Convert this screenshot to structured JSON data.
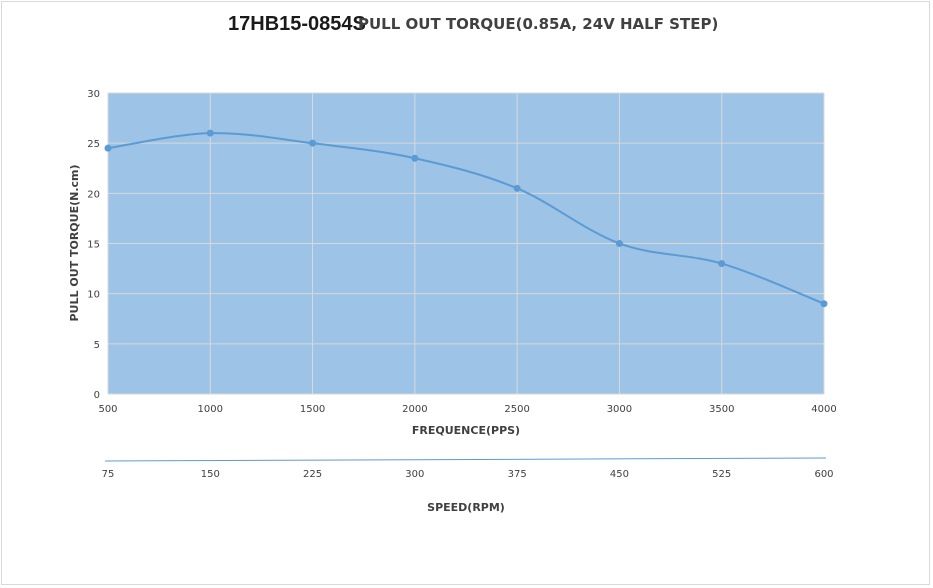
{
  "title": {
    "model": "17HB15-0854S",
    "subtitle": "PULL OUT TORQUE(0.85A, 24V HALF STEP)"
  },
  "colors": {
    "plot_fill": "#9dc3e6",
    "series": "#5b9bd5",
    "grid": "#d9d9d9",
    "text": "#404040"
  },
  "chart_data": {
    "type": "area",
    "title": "PULL OUT TORQUE(0.85A, 24V HALF STEP)",
    "xlabel": "FREQUENCE(PPS)",
    "ylabel": "PULL OUT TORQUE(N.cm)",
    "x": [
      500,
      1000,
      1500,
      2000,
      2500,
      3000,
      3500,
      4000
    ],
    "xticks": [
      "500",
      "1000",
      "1500",
      "2000",
      "2500",
      "3000",
      "3500",
      "4000"
    ],
    "ylim": [
      0,
      30
    ],
    "yticks": [
      "0",
      "5",
      "10",
      "15",
      "20",
      "25",
      "30"
    ],
    "grid": true,
    "smooth": true,
    "series": [
      {
        "values": [
          24.5,
          26,
          25,
          23.5,
          20.5,
          15,
          13,
          9
        ]
      }
    ],
    "secondary_axis": {
      "label": "SPEED(RPM)",
      "ticks": [
        "75",
        "150",
        "225",
        "300",
        "375",
        "450",
        "525",
        "600"
      ]
    }
  }
}
